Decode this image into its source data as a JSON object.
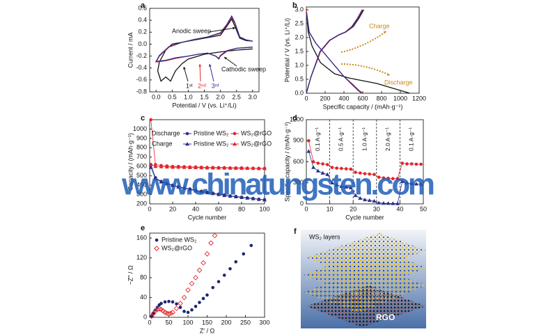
{
  "chart_data": [
    {
      "type": "line",
      "panel": "a",
      "xlabel": "Potential / V (vs. Li⁺/Li)",
      "ylabel": "Current / mA",
      "xlim": [
        -0.2,
        3.2
      ],
      "ylim": [
        -0.8,
        0.6
      ],
      "xticks": [
        {
          "value": 0,
          "label": "0.0"
        },
        0.5,
        {
          "value": 1,
          "label": "1.0"
        },
        1.5,
        {
          "value": 2,
          "label": "2.0"
        },
        2.5,
        {
          "value": 3,
          "label": "3.0"
        }
      ],
      "yticks": [
        -0.8,
        -0.6,
        -0.4,
        -0.2,
        {
          "value": 0,
          "label": "0.0"
        },
        0.2,
        0.4,
        0.6
      ],
      "series": [
        {
          "color": "#111111",
          "x": [
            3.0,
            2.5,
            2.0,
            1.5,
            1.0,
            0.8,
            0.6,
            0.45,
            0.3,
            0.15,
            0.05,
            0.1,
            0.3,
            0.5,
            1.0,
            1.5,
            2.0,
            2.2,
            2.35,
            2.45,
            2.6,
            2.8,
            3.0
          ],
          "values": [
            -0.08,
            -0.1,
            -0.13,
            -0.17,
            -0.25,
            -0.33,
            -0.45,
            -0.62,
            -0.55,
            -0.62,
            -0.45,
            -0.3,
            -0.1,
            0.0,
            0.05,
            0.1,
            0.15,
            0.3,
            0.42,
            0.3,
            0.1,
            0.06,
            0.05
          ]
        },
        {
          "color": "#e0262b",
          "x": [
            3.0,
            2.5,
            2.2,
            2.0,
            1.95,
            1.85,
            1.6,
            1.3,
            1.0,
            0.6,
            0.3,
            0.0,
            0.1,
            0.4,
            0.8,
            1.2,
            1.6,
            2.0,
            2.2,
            2.35,
            2.45,
            2.6,
            2.8,
            3.0
          ],
          "values": [
            -0.05,
            -0.07,
            -0.12,
            -0.2,
            -0.25,
            -0.2,
            -0.15,
            -0.17,
            -0.2,
            -0.24,
            -0.28,
            -0.3,
            -0.2,
            -0.05,
            0.03,
            0.08,
            0.12,
            0.18,
            0.32,
            0.45,
            0.35,
            0.12,
            0.07,
            0.05
          ]
        },
        {
          "color": "#2b2f8c",
          "x": [
            3.0,
            2.5,
            2.2,
            2.0,
            1.95,
            1.85,
            1.6,
            1.3,
            1.0,
            0.6,
            0.3,
            0.0,
            0.1,
            0.4,
            0.8,
            1.2,
            1.6,
            2.0,
            2.2,
            2.35,
            2.45,
            2.6,
            2.8,
            3.0
          ],
          "values": [
            -0.05,
            -0.07,
            -0.11,
            -0.19,
            -0.24,
            -0.2,
            -0.15,
            -0.17,
            -0.2,
            -0.23,
            -0.27,
            -0.29,
            -0.19,
            -0.04,
            0.03,
            0.08,
            0.12,
            0.19,
            0.33,
            0.47,
            0.36,
            0.12,
            0.07,
            0.05
          ]
        }
      ],
      "annotations": [
        {
          "text": "Anodic sweep",
          "color": "#111111"
        },
        {
          "text": "Cathodic sweep",
          "color": "#111111"
        },
        {
          "text": "1ˢᵗ",
          "color": "#111111"
        },
        {
          "text": "2ⁿᵈ",
          "color": "#e0262b"
        },
        {
          "text": "3ʳᵈ",
          "color": "#2b2f8c"
        }
      ]
    },
    {
      "type": "line",
      "panel": "b",
      "xlabel": "Specific capacity / (mAh·g⁻¹)",
      "ylabel": "Potential / V (vs. Li⁺/Li)",
      "xlim": [
        0,
        1200
      ],
      "ylim": [
        0,
        3.1
      ],
      "xticks": [
        0,
        200,
        400,
        600,
        800,
        1000,
        1200
      ],
      "yticks": [
        {
          "value": 0,
          "label": "0.0"
        },
        0.5,
        {
          "value": 1,
          "label": "1.0"
        },
        1.5,
        {
          "value": 2,
          "label": "2.0"
        },
        2.5,
        {
          "value": 3,
          "label": "3.0"
        }
      ],
      "series": [
        {
          "color": "#111111",
          "x": [
            0,
            20,
            60,
            150,
            300,
            450,
            600,
            750,
            900,
            1000,
            1050,
            1100
          ],
          "values": [
            3.0,
            2.2,
            1.7,
            1.1,
            0.7,
            0.55,
            0.45,
            0.35,
            0.2,
            0.1,
            0.05,
            0.0
          ]
        },
        {
          "color": "#e0262b",
          "x": [
            0,
            30,
            100,
            200,
            300,
            400,
            500,
            560,
            600
          ],
          "values": [
            3.0,
            2.2,
            1.8,
            1.4,
            1.0,
            0.6,
            0.3,
            0.1,
            0.0
          ]
        },
        {
          "color": "#2b2f8c",
          "x": [
            0,
            30,
            100,
            200,
            300,
            400,
            490,
            550,
            590
          ],
          "values": [
            2.9,
            2.2,
            1.8,
            1.4,
            1.0,
            0.6,
            0.3,
            0.1,
            0.0
          ]
        },
        {
          "color": "#111111",
          "x": [
            0,
            50,
            150,
            250,
            350,
            420,
            500,
            560,
            610
          ],
          "values": [
            0.0,
            0.6,
            1.5,
            1.9,
            2.1,
            2.2,
            2.4,
            2.7,
            3.0
          ]
        },
        {
          "color": "#e0262b",
          "x": [
            0,
            50,
            150,
            250,
            350,
            420,
            490,
            550,
            600
          ],
          "values": [
            0.0,
            0.6,
            1.5,
            1.9,
            2.1,
            2.2,
            2.4,
            2.7,
            3.0
          ]
        },
        {
          "color": "#2b2f8c",
          "x": [
            0,
            50,
            145,
            245,
            345,
            415,
            485,
            545,
            595
          ],
          "values": [
            0.0,
            0.6,
            1.5,
            1.9,
            2.1,
            2.2,
            2.4,
            2.7,
            3.0
          ]
        }
      ],
      "annotations": [
        {
          "text": "Charge",
          "color": "#c98a1a"
        },
        {
          "text": "Discharge",
          "color": "#c98a1a"
        }
      ]
    },
    {
      "type": "line",
      "panel": "c",
      "xlabel": "Cycle number",
      "ylabel": "Capacity / (mAh·g⁻¹)",
      "xlim": [
        0,
        100
      ],
      "ylim": [
        200,
        1100
      ],
      "xticks": [
        0,
        20,
        40,
        60,
        80,
        100
      ],
      "yticks": [
        200,
        300,
        400,
        500,
        600,
        700,
        800,
        900,
        1000
      ],
      "x": [
        1,
        5,
        10,
        15,
        20,
        25,
        30,
        35,
        40,
        45,
        50,
        55,
        60,
        65,
        70,
        75,
        80,
        85,
        90,
        95,
        100
      ],
      "legend_groups": [
        "Discharge",
        "Charge"
      ],
      "series": [
        {
          "name": "Pristine WS₂",
          "color": "#2b2f8c",
          "marker": "circle",
          "values": [
            620,
            480,
            440,
            420,
            400,
            385,
            370,
            360,
            345,
            335,
            325,
            315,
            305,
            295,
            285,
            280,
            272,
            265,
            258,
            250,
            245
          ]
        },
        {
          "name": "WS₂@rGO",
          "color": "#e0262b",
          "marker": "circle",
          "values": [
            1100,
            620,
            610,
            605,
            600,
            600,
            598,
            595,
            595,
            592,
            590,
            590,
            588,
            588,
            585,
            585,
            585,
            582,
            582,
            580,
            580
          ]
        },
        {
          "name": "Pristine WS₂",
          "color": "#2b2f8c",
          "marker": "triangle",
          "values": [
            590,
            470,
            435,
            415,
            395,
            380,
            365,
            355,
            340,
            330,
            320,
            310,
            300,
            290,
            282,
            276,
            268,
            262,
            255,
            248,
            242
          ]
        },
        {
          "name": "WS₂@rGO",
          "color": "#e0262b",
          "marker": "triangle",
          "values": [
            620,
            600,
            598,
            595,
            592,
            592,
            590,
            588,
            588,
            586,
            585,
            585,
            584,
            583,
            582,
            581,
            580,
            580,
            579,
            578,
            578
          ]
        }
      ]
    },
    {
      "type": "line",
      "panel": "d",
      "xlabel": "Cycle number",
      "ylabel": "Specific capacity / (mAh·g⁻¹)",
      "xlim": [
        0,
        50
      ],
      "ylim": [
        0,
        1200
      ],
      "xticks": [
        0,
        10,
        20,
        30,
        40,
        50
      ],
      "yticks": [
        0,
        300,
        600,
        900,
        1200
      ],
      "x": [
        1,
        3,
        5,
        7,
        9,
        11,
        13,
        15,
        17,
        19,
        21,
        23,
        25,
        27,
        29,
        31,
        33,
        35,
        37,
        39,
        41,
        43,
        45,
        47,
        49
      ],
      "dividers": [
        10,
        20,
        30,
        40
      ],
      "series": [
        {
          "color": "#e0262b",
          "marker": "circle",
          "values": [
            900,
            600,
            580,
            570,
            560,
            520,
            510,
            505,
            500,
            495,
            450,
            440,
            430,
            425,
            420,
            380,
            370,
            365,
            360,
            360,
            580,
            570,
            570,
            565,
            565
          ]
        },
        {
          "color": "#2b2f8c",
          "marker": "triangle",
          "values": [
            750,
            520,
            470,
            440,
            420,
            300,
            270,
            250,
            240,
            230,
            120,
            80,
            60,
            50,
            40,
            15,
            10,
            8,
            6,
            5,
            320,
            300,
            290,
            285,
            280
          ]
        }
      ],
      "annotations": [
        {
          "text": "0.1 A·g⁻¹",
          "color": "#111111"
        },
        {
          "text": "0.5 A·g⁻¹",
          "color": "#111111"
        },
        {
          "text": "1.0 A·g⁻¹",
          "color": "#111111"
        },
        {
          "text": "2.0 A·g⁻¹",
          "color": "#111111"
        },
        {
          "text": "0.1 A·g⁻¹",
          "color": "#111111"
        }
      ]
    },
    {
      "type": "scatter",
      "panel": "e",
      "xlabel": "Z′ / Ω",
      "ylabel": "−Z″ / Ω",
      "xlim": [
        0,
        300
      ],
      "ylim": [
        0,
        170
      ],
      "xticks": [
        0,
        50,
        100,
        150,
        200,
        250,
        300
      ],
      "yticks": [
        0,
        40,
        80,
        120,
        160
      ],
      "series": [
        {
          "name": "Pristine WS₂",
          "color": "#1c2570",
          "marker": "circle",
          "x": [
            5,
            10,
            15,
            20,
            25,
            30,
            40,
            50,
            60,
            70,
            80,
            90,
            100,
            110,
            120,
            130,
            140,
            150,
            165,
            180,
            195,
            210,
            225,
            245,
            265
          ],
          "values": [
            2,
            8,
            15,
            20,
            25,
            28,
            31,
            32,
            31,
            27,
            20,
            12,
            10,
            15,
            22,
            30,
            38,
            45,
            60,
            72,
            85,
            98,
            112,
            128,
            145
          ]
        },
        {
          "name": "WS₂@rGO",
          "color": "#e0262b",
          "marker": "diamond-open",
          "x": [
            5,
            10,
            15,
            20,
            25,
            30,
            35,
            40,
            45,
            50,
            55,
            60,
            70,
            80,
            90,
            100,
            110,
            120,
            130,
            140,
            150,
            160,
            170
          ],
          "values": [
            2,
            8,
            13,
            16,
            17,
            16,
            13,
            10,
            8,
            7,
            8,
            10,
            18,
            28,
            40,
            55,
            68,
            80,
            95,
            110,
            128,
            150,
            165
          ]
        }
      ]
    }
  ],
  "illustration": {
    "panel": "f",
    "layers_label": "WS₂ layers",
    "substrate_label": "RGO"
  },
  "watermark": "www.chinatungsten.com"
}
